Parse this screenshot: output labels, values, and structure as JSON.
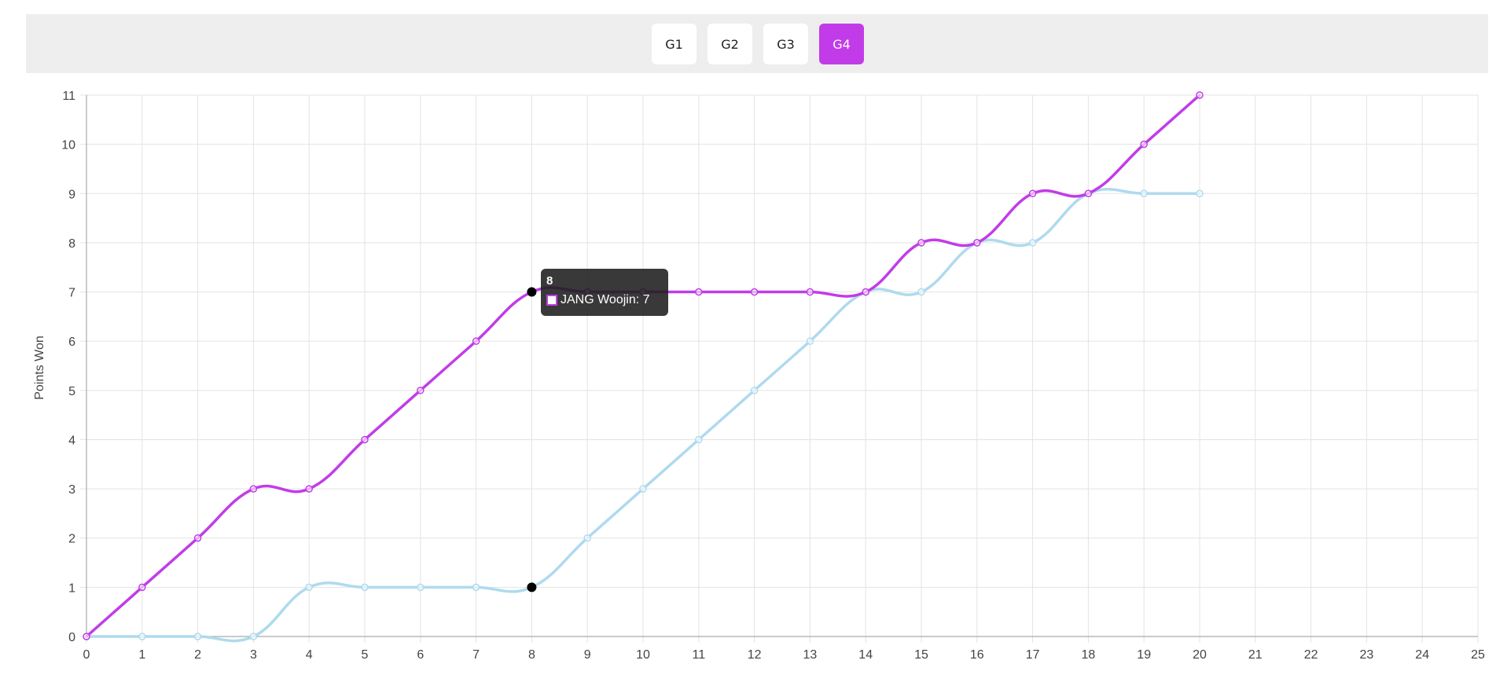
{
  "game_tabs": [
    {
      "label": "G1",
      "active": false
    },
    {
      "label": "G2",
      "active": false
    },
    {
      "label": "G3",
      "active": false
    },
    {
      "label": "G4",
      "active": true
    }
  ],
  "colors": {
    "series_1": "#c13ce8",
    "series_2": "#afdaee",
    "active_tab": "#c13ce8",
    "grid": "#e3e3e3",
    "hover_point": "#000000"
  },
  "tooltip": {
    "title": "8",
    "label": "JANG Woojin: 7"
  },
  "chart_data": {
    "type": "line",
    "ylabel": "Points Won",
    "xlim": [
      0,
      25
    ],
    "ylim": [
      0,
      11
    ],
    "x_ticks": [
      0,
      1,
      2,
      3,
      4,
      5,
      6,
      7,
      8,
      9,
      10,
      11,
      12,
      13,
      14,
      15,
      16,
      17,
      18,
      19,
      20,
      21,
      22,
      23,
      24,
      25
    ],
    "y_ticks": [
      0,
      1,
      2,
      3,
      4,
      5,
      6,
      7,
      8,
      9,
      10,
      11
    ],
    "grid": true,
    "hover_x": 8,
    "series": [
      {
        "name": "JANG Woojin",
        "color": "#c13ce8",
        "x": [
          0,
          1,
          2,
          3,
          4,
          5,
          6,
          7,
          8,
          9,
          10,
          11,
          12,
          13,
          14,
          15,
          16,
          17,
          18,
          19,
          20
        ],
        "values": [
          0,
          1,
          2,
          3,
          3,
          4,
          5,
          6,
          7,
          7,
          7,
          7,
          7,
          7,
          7,
          8,
          8,
          9,
          9,
          10,
          11
        ]
      },
      {
        "color": "#afdaee",
        "x": [
          0,
          1,
          2,
          3,
          4,
          5,
          6,
          7,
          8,
          9,
          10,
          11,
          12,
          13,
          14,
          15,
          16,
          17,
          18,
          19,
          20
        ],
        "values": [
          0,
          0,
          0,
          0,
          1,
          1,
          1,
          1,
          1,
          2,
          3,
          4,
          5,
          6,
          7,
          7,
          8,
          8,
          9,
          9,
          9
        ]
      }
    ]
  }
}
